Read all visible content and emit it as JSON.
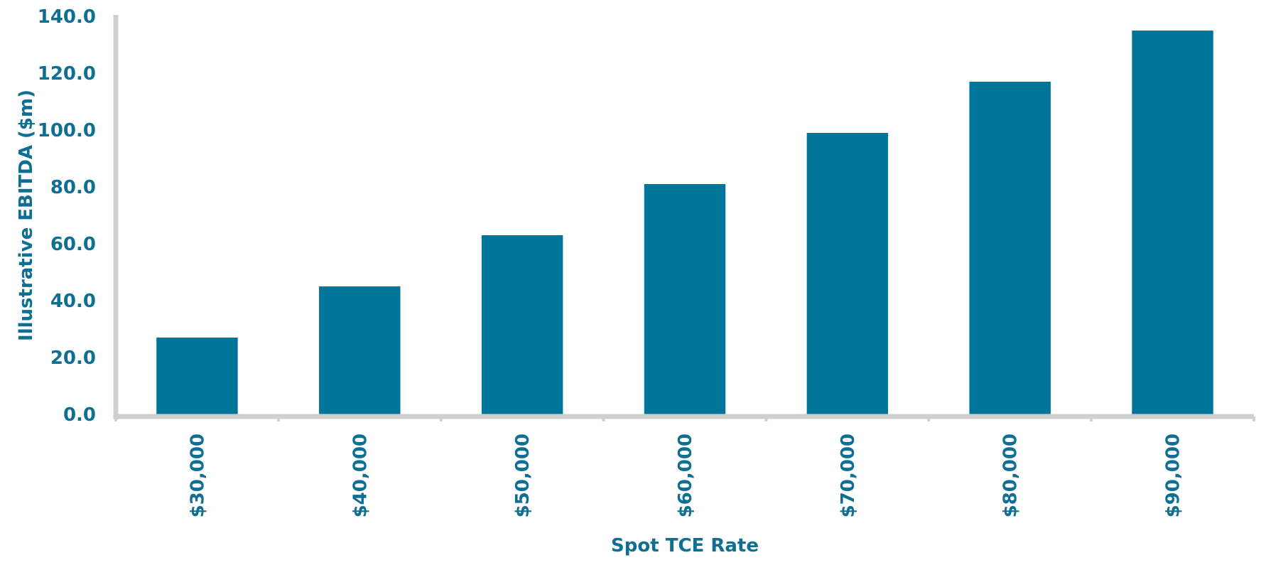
{
  "chart_data": {
    "type": "bar",
    "categories": [
      "$30,000",
      "$40,000",
      "$50,000",
      "$60,000",
      "$70,000",
      "$80,000",
      "$90,000"
    ],
    "values": [
      27.0,
      45.0,
      63.0,
      81.0,
      99.0,
      117.0,
      135.0
    ],
    "xlabel": "Spot TCE Rate",
    "ylabel": "Illustrative EBITDA ($m)",
    "ylim": [
      0,
      140
    ],
    "yticks": [
      "0.0",
      "20.0",
      "40.0",
      "60.0",
      "80.0",
      "100.0",
      "120.0",
      "140.0"
    ],
    "grid": false,
    "legend": "none",
    "colors": {
      "bar": "#00759a",
      "axis": "#d0d0d0",
      "text": "#0f6f92"
    }
  }
}
